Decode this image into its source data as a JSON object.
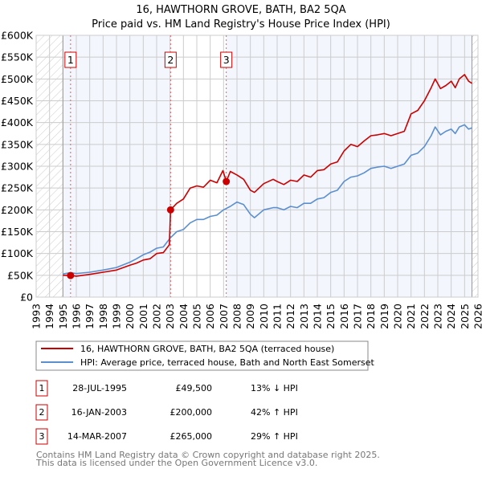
{
  "chart_data": {
    "type": "line",
    "title": "16, HAWTHORN GROVE, BATH, BA2 5QA",
    "subtitle": "Price paid vs. HM Land Registry's House Price Index (HPI)",
    "xlabel": "",
    "ylabel": "",
    "xlim": [
      1993,
      2026
    ],
    "ylim": [
      0,
      600000
    ],
    "x_ticks": [
      "1993",
      "1994",
      "1995",
      "1996",
      "1997",
      "1998",
      "1999",
      "2000",
      "2001",
      "2002",
      "2003",
      "2004",
      "2005",
      "2006",
      "2007",
      "2008",
      "2009",
      "2010",
      "2011",
      "2012",
      "2013",
      "2014",
      "2015",
      "2016",
      "2017",
      "2018",
      "2019",
      "2020",
      "2021",
      "2022",
      "2023",
      "2024",
      "2025",
      "2026"
    ],
    "y_ticks": [
      {
        "value": 0,
        "label": "£0"
      },
      {
        "value": 50000,
        "label": "£50K"
      },
      {
        "value": 100000,
        "label": "£100K"
      },
      {
        "value": 150000,
        "label": "£150K"
      },
      {
        "value": 200000,
        "label": "£200K"
      },
      {
        "value": 250000,
        "label": "£250K"
      },
      {
        "value": 300000,
        "label": "£300K"
      },
      {
        "value": 350000,
        "label": "£350K"
      },
      {
        "value": 400000,
        "label": "£400K"
      },
      {
        "value": 450000,
        "label": "£450K"
      },
      {
        "value": 500000,
        "label": "£500K"
      },
      {
        "value": 550000,
        "label": "£550K"
      },
      {
        "value": 600000,
        "label": "£600K"
      }
    ],
    "grid": true,
    "data_range": [
      1995.0,
      2025.55
    ],
    "series": [
      {
        "name": "16, HAWTHORN GROVE, BATH, BA2 5QA (terraced house)",
        "color": "#cc0000",
        "x": [
          1995.0,
          1995.57,
          1996,
          1997,
          1998,
          1999,
          2000,
          2000.5,
          2001,
          2001.5,
          2002,
          2002.5,
          2002.95,
          2003.04,
          2003.5,
          2004,
          2004.5,
          2005,
          2005.5,
          2006,
          2006.5,
          2006.95,
          2007.2,
          2007.5,
          2008,
          2008.5,
          2009,
          2009.3,
          2010,
          2010.7,
          2011,
          2011.5,
          2012,
          2012.5,
          2013,
          2013.5,
          2014,
          2014.5,
          2015,
          2015.5,
          2016,
          2016.5,
          2017,
          2017.5,
          2018,
          2018.5,
          2019,
          2019.5,
          2020,
          2020.5,
          2021,
          2021.5,
          2022,
          2022.5,
          2022.8,
          2023.2,
          2023.6,
          2024,
          2024.3,
          2024.6,
          2025,
          2025.3,
          2025.55
        ],
        "y": [
          50000,
          49500,
          48000,
          52000,
          57000,
          62000,
          73000,
          78000,
          85000,
          88000,
          100000,
          102000,
          120000,
          200000,
          215000,
          225000,
          250000,
          255000,
          252000,
          268000,
          262000,
          290000,
          265000,
          288000,
          280000,
          270000,
          245000,
          240000,
          260000,
          270000,
          265000,
          258000,
          268000,
          265000,
          280000,
          275000,
          290000,
          292000,
          305000,
          310000,
          335000,
          350000,
          345000,
          358000,
          370000,
          372000,
          375000,
          370000,
          375000,
          380000,
          420000,
          428000,
          450000,
          480000,
          500000,
          478000,
          485000,
          495000,
          480000,
          500000,
          510000,
          495000,
          490000
        ]
      },
      {
        "name": "HPI: Average price, terraced house, Bath and North East Somerset",
        "color": "#5b8fd0",
        "x": [
          1995.0,
          1995.57,
          1996,
          1997,
          1998,
          1999,
          2000,
          2000.5,
          2001,
          2001.5,
          2002,
          2002.5,
          2003,
          2003.5,
          2004,
          2004.5,
          2005,
          2005.5,
          2006,
          2006.5,
          2007,
          2007.5,
          2008,
          2008.5,
          2009,
          2009.3,
          2010,
          2010.7,
          2011,
          2011.5,
          2012,
          2012.5,
          2013,
          2013.5,
          2014,
          2014.5,
          2015,
          2015.5,
          2016,
          2016.5,
          2017,
          2017.5,
          2018,
          2018.5,
          2019,
          2019.5,
          2020,
          2020.5,
          2021,
          2021.5,
          2022,
          2022.5,
          2022.8,
          2023.2,
          2023.6,
          2024,
          2024.3,
          2024.6,
          2025,
          2025.3,
          2025.55
        ],
        "y": [
          53000,
          56000,
          54000,
          57000,
          62000,
          68000,
          80000,
          88000,
          97000,
          103000,
          112000,
          115000,
          135000,
          150000,
          155000,
          170000,
          178000,
          178000,
          185000,
          188000,
          200000,
          208000,
          218000,
          212000,
          190000,
          182000,
          200000,
          205000,
          205000,
          200000,
          208000,
          205000,
          215000,
          215000,
          225000,
          228000,
          240000,
          245000,
          265000,
          275000,
          278000,
          285000,
          295000,
          298000,
          300000,
          295000,
          300000,
          305000,
          325000,
          330000,
          345000,
          370000,
          390000,
          372000,
          380000,
          385000,
          375000,
          390000,
          395000,
          385000,
          388000
        ]
      }
    ],
    "sales": [
      {
        "n": "1",
        "x": 1995.57,
        "y": 49500,
        "date": "28-JUL-1995",
        "price": "£49,500",
        "hpi": "13% ↓ HPI"
      },
      {
        "n": "2",
        "x": 2003.04,
        "y": 200000,
        "date": "16-JAN-2003",
        "price": "£200,000",
        "hpi": "42% ↑ HPI"
      },
      {
        "n": "3",
        "x": 2007.2,
        "y": 265000,
        "date": "14-MAR-2007",
        "price": "£265,000",
        "hpi": "29% ↑ HPI"
      }
    ],
    "legend": {
      "placement": "bottom",
      "entries": [
        "16, HAWTHORN GROVE, BATH, BA2 5QA (terraced house)",
        "HPI: Average price, terraced house, Bath and North East Somerset"
      ]
    }
  },
  "footer": {
    "line1": "Contains HM Land Registry data © Crown copyright and database right 2025.",
    "line2": "This data is licensed under the Open Government Licence v3.0."
  }
}
